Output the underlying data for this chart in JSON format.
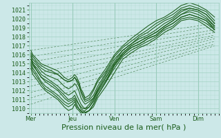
{
  "bg_color": "#cce8e8",
  "grid_color": "#99ccbb",
  "line_color": "#1a5c1a",
  "ylim": [
    1009.5,
    1021.8
  ],
  "yticks": [
    1010,
    1011,
    1012,
    1013,
    1014,
    1015,
    1016,
    1017,
    1018,
    1019,
    1020,
    1021
  ],
  "xtick_labels": [
    "Mer",
    "Jeu",
    "Ven",
    "Sam",
    "Dim"
  ],
  "xlabel": "Pression niveau de la mer( hPa )",
  "font_color": "#1a5c1a",
  "tick_fontsize": 6,
  "xlabel_fontsize": 8,
  "ensemble_lines": [
    {
      "pts_x": [
        0.0,
        0.05,
        0.15,
        0.25,
        0.35,
        0.5,
        0.65,
        0.8,
        0.9,
        1.0,
        1.05,
        1.1,
        1.15,
        1.2,
        1.25,
        1.3,
        1.4,
        1.5,
        1.6,
        1.8,
        2.0,
        2.2,
        2.4,
        2.6,
        2.8,
        3.0,
        3.2,
        3.4,
        3.6,
        3.8,
        4.0,
        4.2,
        4.4
      ],
      "pts_y": [
        1016.0,
        1015.5,
        1015.0,
        1014.5,
        1014.2,
        1014.0,
        1013.8,
        1013.2,
        1013.0,
        1013.2,
        1013.5,
        1013.2,
        1012.8,
        1011.8,
        1011.2,
        1010.8,
        1011.0,
        1011.5,
        1012.5,
        1014.0,
        1015.5,
        1016.5,
        1017.2,
        1017.8,
        1018.2,
        1018.8,
        1019.5,
        1020.0,
        1020.8,
        1021.2,
        1021.0,
        1020.5,
        1019.5
      ]
    },
    {
      "pts_x": [
        0.0,
        0.05,
        0.15,
        0.25,
        0.35,
        0.5,
        0.65,
        0.8,
        0.9,
        1.0,
        1.05,
        1.1,
        1.15,
        1.2,
        1.25,
        1.3,
        1.4,
        1.5,
        1.6,
        1.8,
        2.0,
        2.2,
        2.4,
        2.6,
        2.8,
        3.0,
        3.2,
        3.4,
        3.6,
        3.8,
        4.0,
        4.2,
        4.4
      ],
      "pts_y": [
        1015.8,
        1015.2,
        1014.8,
        1014.2,
        1013.8,
        1013.5,
        1013.2,
        1012.5,
        1012.2,
        1012.5,
        1012.8,
        1012.5,
        1012.0,
        1011.2,
        1010.8,
        1010.5,
        1010.8,
        1011.2,
        1012.0,
        1013.5,
        1015.0,
        1016.2,
        1017.0,
        1017.5,
        1018.0,
        1018.5,
        1019.2,
        1019.8,
        1020.5,
        1020.8,
        1020.5,
        1020.0,
        1019.2
      ]
    },
    {
      "pts_x": [
        0.0,
        0.05,
        0.15,
        0.25,
        0.35,
        0.5,
        0.65,
        0.8,
        0.9,
        1.0,
        1.05,
        1.1,
        1.15,
        1.2,
        1.25,
        1.3,
        1.4,
        1.5,
        1.6,
        1.8,
        2.0,
        2.2,
        2.4,
        2.6,
        2.8,
        3.0,
        3.2,
        3.4,
        3.6,
        3.8,
        4.0,
        4.2,
        4.4
      ],
      "pts_y": [
        1015.5,
        1015.0,
        1014.5,
        1013.8,
        1013.5,
        1013.0,
        1012.5,
        1011.8,
        1011.5,
        1011.8,
        1012.0,
        1011.5,
        1011.0,
        1010.5,
        1010.2,
        1010.0,
        1010.2,
        1010.8,
        1011.8,
        1013.2,
        1014.8,
        1016.0,
        1016.8,
        1017.2,
        1017.8,
        1018.2,
        1019.0,
        1019.5,
        1020.2,
        1020.5,
        1020.2,
        1019.8,
        1019.0
      ]
    },
    {
      "pts_x": [
        0.0,
        0.05,
        0.15,
        0.25,
        0.35,
        0.5,
        0.65,
        0.8,
        0.9,
        1.0,
        1.05,
        1.1,
        1.15,
        1.2,
        1.25,
        1.3,
        1.4,
        1.5,
        1.6,
        1.8,
        2.0,
        2.2,
        2.4,
        2.6,
        2.8,
        3.0,
        3.2,
        3.4,
        3.6,
        3.8,
        4.0,
        4.2,
        4.4
      ],
      "pts_y": [
        1015.2,
        1014.8,
        1014.2,
        1013.5,
        1013.0,
        1012.5,
        1012.0,
        1011.2,
        1010.8,
        1011.0,
        1011.2,
        1010.8,
        1010.5,
        1010.0,
        1009.8,
        1009.6,
        1009.8,
        1010.5,
        1011.5,
        1013.0,
        1014.5,
        1015.8,
        1016.5,
        1017.0,
        1017.5,
        1018.0,
        1018.8,
        1019.2,
        1020.0,
        1020.2,
        1020.0,
        1019.5,
        1018.8
      ]
    },
    {
      "pts_x": [
        0.0,
        0.05,
        0.15,
        0.25,
        0.35,
        0.5,
        0.65,
        0.8,
        0.9,
        1.0,
        1.05,
        1.1,
        1.15,
        1.2,
        1.25,
        1.3,
        1.4,
        1.5,
        1.6,
        1.8,
        2.0,
        2.2,
        2.4,
        2.6,
        2.8,
        3.0,
        3.2,
        3.4,
        3.6,
        3.8,
        4.0,
        4.2,
        4.4
      ],
      "pts_y": [
        1014.8,
        1014.2,
        1013.5,
        1012.8,
        1012.2,
        1011.8,
        1011.2,
        1010.5,
        1010.2,
        1010.5,
        1010.8,
        1010.2,
        1010.0,
        1009.7,
        1009.5,
        1009.5,
        1009.8,
        1010.2,
        1011.2,
        1012.5,
        1014.0,
        1015.5,
        1016.2,
        1016.8,
        1017.2,
        1017.8,
        1018.5,
        1019.0,
        1019.8,
        1020.0,
        1019.8,
        1019.2,
        1018.5
      ]
    },
    {
      "pts_x": [
        0.0,
        0.05,
        0.15,
        0.25,
        0.35,
        0.5,
        0.65,
        0.8,
        0.9,
        1.0,
        1.05,
        1.1,
        1.15,
        1.2,
        1.25,
        1.3,
        1.4,
        1.5,
        1.6,
        1.8,
        2.0,
        2.2,
        2.4,
        2.6,
        2.8,
        3.0,
        3.2,
        3.4,
        3.6,
        3.8,
        4.0,
        4.2,
        4.4
      ],
      "pts_y": [
        1016.2,
        1015.8,
        1015.2,
        1014.8,
        1014.5,
        1014.2,
        1013.8,
        1013.2,
        1013.0,
        1013.2,
        1013.5,
        1013.0,
        1012.5,
        1012.0,
        1011.5,
        1011.0,
        1011.2,
        1012.0,
        1013.0,
        1014.2,
        1015.8,
        1016.8,
        1017.5,
        1018.2,
        1018.8,
        1019.5,
        1020.0,
        1020.5,
        1021.2,
        1021.5,
        1021.2,
        1020.8,
        1019.8
      ]
    },
    {
      "pts_x": [
        0.0,
        0.05,
        0.15,
        0.25,
        0.35,
        0.5,
        0.65,
        0.8,
        0.9,
        1.0,
        1.05,
        1.1,
        1.15,
        1.2,
        1.25,
        1.3,
        1.4,
        1.5,
        1.6,
        1.8,
        2.0,
        2.2,
        2.4,
        2.6,
        2.8,
        3.0,
        3.2,
        3.4,
        3.6,
        3.8,
        4.0,
        4.2,
        4.4
      ],
      "pts_y": [
        1015.0,
        1014.5,
        1013.8,
        1013.0,
        1012.5,
        1012.0,
        1011.5,
        1010.8,
        1010.5,
        1010.8,
        1011.0,
        1010.5,
        1010.0,
        1009.8,
        1009.6,
        1009.8,
        1010.2,
        1011.0,
        1012.0,
        1013.5,
        1015.0,
        1016.2,
        1017.0,
        1017.5,
        1018.0,
        1018.5,
        1019.2,
        1019.8,
        1020.5,
        1021.0,
        1020.8,
        1020.2,
        1019.2
      ]
    },
    {
      "pts_x": [
        0.0,
        0.05,
        0.15,
        0.25,
        0.35,
        0.5,
        0.65,
        0.8,
        0.9,
        1.0,
        1.05,
        1.1,
        1.15,
        1.2,
        1.25,
        1.3,
        1.4,
        1.5,
        1.6,
        1.8,
        2.0,
        2.2,
        2.4,
        2.6,
        2.8,
        3.0,
        3.2,
        3.4,
        3.6,
        3.8,
        4.0,
        4.2,
        4.4
      ],
      "pts_y": [
        1014.5,
        1013.8,
        1013.2,
        1012.5,
        1012.0,
        1011.5,
        1011.0,
        1010.2,
        1009.8,
        1010.0,
        1010.5,
        1010.0,
        1009.8,
        1009.5,
        1009.5,
        1009.5,
        1009.8,
        1010.5,
        1011.5,
        1013.0,
        1014.8,
        1016.0,
        1016.8,
        1017.2,
        1017.8,
        1018.2,
        1019.0,
        1019.5,
        1020.2,
        1020.5,
        1020.2,
        1019.8,
        1018.8
      ]
    },
    {
      "pts_x": [
        0.0,
        0.05,
        0.15,
        0.25,
        0.35,
        0.5,
        0.65,
        0.8,
        0.9,
        1.0,
        1.05,
        1.1,
        1.15,
        1.2,
        1.25,
        1.3,
        1.4,
        1.5,
        1.6,
        1.8,
        2.0,
        2.2,
        2.4,
        2.6,
        2.8,
        3.0,
        3.2,
        3.4,
        3.6,
        3.8,
        4.0,
        4.2,
        4.4
      ],
      "pts_y": [
        1016.5,
        1016.0,
        1015.5,
        1015.0,
        1014.8,
        1014.5,
        1014.2,
        1013.5,
        1013.2,
        1013.5,
        1013.8,
        1013.5,
        1013.0,
        1012.2,
        1011.8,
        1011.2,
        1011.5,
        1012.2,
        1013.2,
        1014.5,
        1016.0,
        1017.0,
        1017.8,
        1018.5,
        1019.2,
        1019.8,
        1020.2,
        1020.8,
        1021.5,
        1021.8,
        1021.5,
        1021.0,
        1020.2
      ]
    },
    {
      "pts_x": [
        0.0,
        0.05,
        0.15,
        0.25,
        0.35,
        0.5,
        0.65,
        0.8,
        0.9,
        1.0,
        1.05,
        1.1,
        1.15,
        1.2,
        1.25,
        1.3,
        1.4,
        1.5,
        1.6,
        1.8,
        2.0,
        2.2,
        2.4,
        2.6,
        2.8,
        3.0,
        3.2,
        3.4,
        3.6,
        3.8,
        4.0,
        4.2,
        4.4
      ],
      "pts_y": [
        1015.5,
        1015.0,
        1014.2,
        1013.5,
        1013.2,
        1012.8,
        1012.2,
        1011.5,
        1011.0,
        1011.2,
        1011.5,
        1011.0,
        1010.5,
        1010.2,
        1010.0,
        1010.0,
        1010.5,
        1011.2,
        1012.2,
        1013.8,
        1015.2,
        1016.5,
        1017.2,
        1018.0,
        1018.5,
        1019.2,
        1019.8,
        1020.2,
        1021.0,
        1021.2,
        1021.0,
        1020.5,
        1019.5
      ]
    }
  ],
  "dashed_lines": [
    [
      0.0,
      1016.5,
      4.4,
      1019.5
    ],
    [
      0.0,
      1015.8,
      4.4,
      1019.2
    ],
    [
      0.0,
      1015.2,
      4.4,
      1018.8
    ],
    [
      0.0,
      1014.5,
      4.4,
      1018.5
    ],
    [
      0.0,
      1013.8,
      4.4,
      1018.2
    ],
    [
      0.0,
      1013.2,
      4.4,
      1018.0
    ],
    [
      0.0,
      1012.5,
      4.4,
      1017.8
    ],
    [
      0.0,
      1011.8,
      4.4,
      1017.5
    ],
    [
      0.0,
      1011.2,
      4.4,
      1017.2
    ],
    [
      0.0,
      1010.5,
      4.4,
      1017.0
    ]
  ]
}
